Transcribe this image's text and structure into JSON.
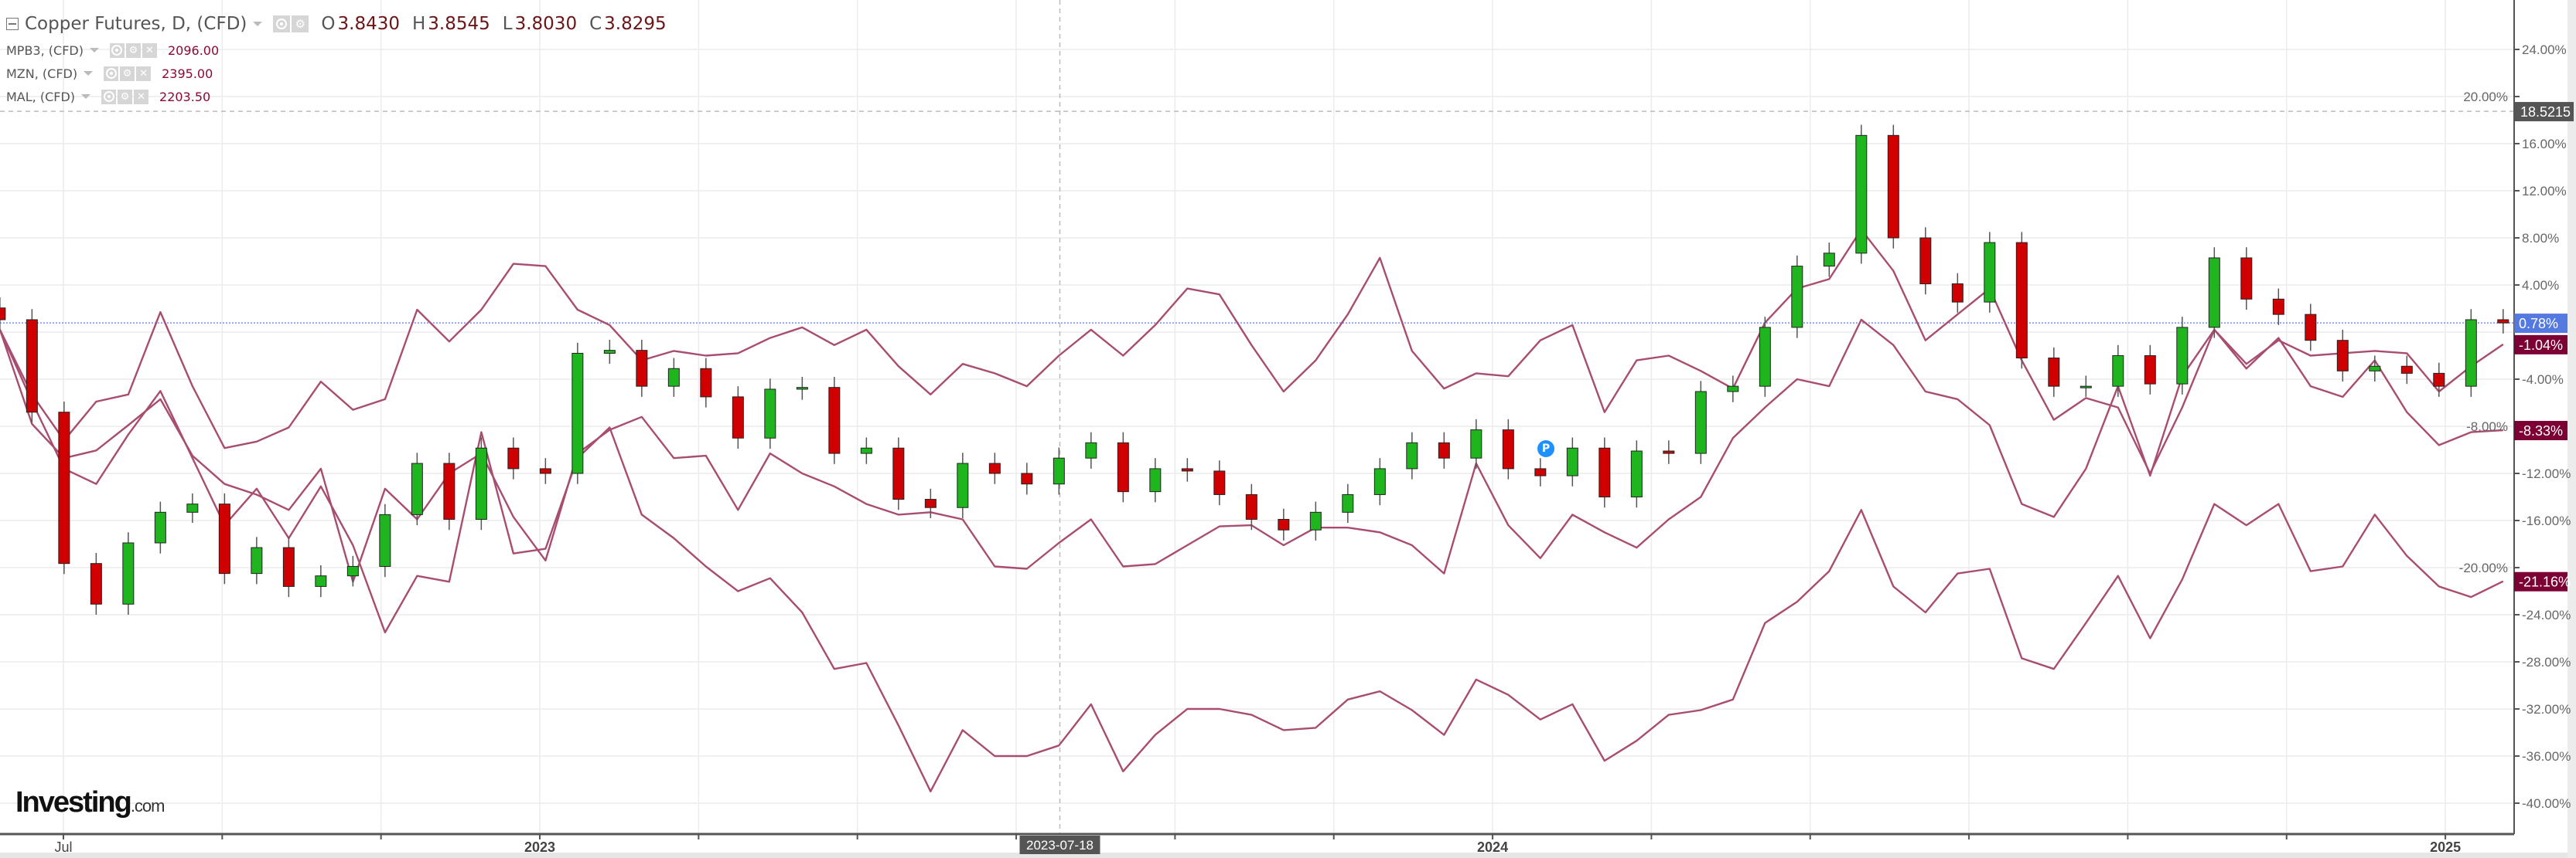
{
  "legend": {
    "main": {
      "title": "Copper Futures, D, (CFD)",
      "ohlc": [
        {
          "k": "O",
          "v": "3.8430"
        },
        {
          "k": "H",
          "v": "3.8545"
        },
        {
          "k": "L",
          "v": "3.8030"
        },
        {
          "k": "C",
          "v": "3.8295"
        }
      ]
    },
    "overlays": [
      {
        "name": "MPB3, (CFD)",
        "value": "2096.00"
      },
      {
        "name": "MZN, (CFD)",
        "value": "2395.00"
      },
      {
        "name": "MAL, (CFD)",
        "value": "2203.50"
      }
    ]
  },
  "logo": {
    "big": "Investing",
    "small": ".com"
  },
  "marker": {
    "label": "P"
  },
  "chart_data": {
    "type": "candlestick+line",
    "x_unit": "months since 2022-07-01",
    "x_start": -0.8,
    "x_step": 0.4042,
    "ylabel": "% change",
    "ylim": [
      -43,
      28
    ],
    "y_ticks": [
      24,
      20,
      16,
      12,
      8,
      4,
      -4,
      -8,
      -12,
      -16,
      -20,
      -24,
      -28,
      -32,
      -36,
      -40
    ],
    "y_tick_suffix": ".00%",
    "x_grid_months": [
      0,
      2,
      4,
      6,
      8,
      10,
      12,
      14,
      16,
      18,
      20,
      22,
      24,
      26,
      28,
      30
    ],
    "x_labels": [
      {
        "m": 0,
        "label": "Jul"
      },
      {
        "m": 6,
        "label": "2023"
      },
      {
        "m": 18,
        "label": "2024"
      },
      {
        "m": 30,
        "label": "2025"
      }
    ],
    "crosshair": {
      "m": 12.55,
      "date_label": "2023-07-18",
      "y": 18.75,
      "value_label": "18.5215"
    },
    "copper": {
      "name": "Copper Futures",
      "current": 0.78,
      "current_label": "0.78%",
      "closes": [
        1.05,
        -6.8,
        -19.65,
        -23.1,
        -17.9,
        -15.3,
        -14.6,
        -20.5,
        -18.3,
        -21.6,
        -20.7,
        -19.9,
        -15.5,
        -11.15,
        -15.9,
        -9.85,
        -11.6,
        -12.0,
        -1.8,
        -1.55,
        -4.6,
        -3.1,
        -5.5,
        -9.0,
        -4.85,
        -4.7,
        -10.3,
        -9.85,
        -14.2,
        -14.9,
        -11.15,
        -12.0,
        -12.9,
        -10.7,
        -9.4,
        -13.55,
        -11.6,
        -11.8,
        -13.8,
        -15.9,
        -16.8,
        -15.3,
        -13.8,
        -11.6,
        -9.4,
        -10.7,
        -8.3,
        -11.6,
        -12.2,
        -9.85,
        -14.0,
        -10.1,
        -10.3,
        -5.05,
        -4.6,
        0.4,
        5.6,
        6.7,
        16.7,
        8.0,
        4.1,
        2.55,
        7.6,
        -2.2,
        -4.6,
        -4.6,
        -2.0,
        -4.4,
        0.4,
        6.3,
        2.8,
        1.5,
        -0.7,
        -3.3,
        -2.9,
        -3.5,
        -4.6,
        1.05,
        0.78
      ]
    },
    "series": [
      {
        "name": "MPB3",
        "last": -1.04,
        "last_label": "-1.04%",
        "values": [
          0.2,
          -5.3,
          -9.2,
          -5.9,
          -5.3,
          1.7,
          -4.6,
          -9.85,
          -9.3,
          -8.1,
          -4.2,
          -6.6,
          -5.7,
          1.9,
          -0.8,
          1.9,
          5.8,
          5.6,
          1.9,
          0.6,
          -2.4,
          -1.6,
          -2.0,
          -1.8,
          -0.5,
          0.4,
          -1.1,
          0.2,
          -2.9,
          -5.3,
          -2.7,
          -3.5,
          -4.6,
          -2.0,
          0.2,
          -2.0,
          0.6,
          3.7,
          3.2,
          -1.1,
          -5.05,
          -2.4,
          1.5,
          6.3,
          -1.6,
          -4.8,
          -3.5,
          -3.75,
          -0.7,
          0.6,
          -6.8,
          -2.4,
          -2.0,
          -3.3,
          -4.8,
          0.8,
          3.7,
          4.5,
          8.7,
          5.2,
          -0.7,
          1.5,
          3.7,
          -2.4,
          -7.45,
          -5.6,
          -6.4,
          -12.0,
          -6.4,
          0.2,
          -2.7,
          -0.7,
          -2.0,
          -1.8,
          -1.6,
          -1.8,
          -5.05,
          -2.9,
          -1.04
        ]
      },
      {
        "name": "MAL",
        "last": -8.33,
        "last_label": "-8.33%",
        "values": [
          0.2,
          -7.8,
          -10.7,
          -10.05,
          -7.9,
          -5.7,
          -10.5,
          -12.9,
          -13.8,
          -15.1,
          -11.6,
          -21.2,
          -13.3,
          -15.9,
          -12.0,
          -10.3,
          -15.7,
          -19.4,
          -10.3,
          -8.3,
          -7.2,
          -10.7,
          -10.5,
          -15.1,
          -10.3,
          -12.0,
          -13.1,
          -14.6,
          -15.5,
          -15.3,
          -15.9,
          -19.9,
          -20.1,
          -17.9,
          -15.9,
          -19.9,
          -19.7,
          -18.1,
          -16.5,
          -16.4,
          -18.1,
          -16.6,
          -16.6,
          -17.0,
          -18.1,
          -20.5,
          -11.15,
          -16.4,
          -19.2,
          -15.5,
          -17.0,
          -18.3,
          -15.9,
          -14.0,
          -9.0,
          -6.4,
          -4.0,
          -4.6,
          1.05,
          -1.1,
          -5.05,
          -5.7,
          -7.9,
          -14.6,
          -15.7,
          -11.6,
          -4.6,
          -12.2,
          -3.75,
          0.2,
          -3.1,
          -0.5,
          -4.6,
          -5.5,
          -2.4,
          -6.8,
          -9.6,
          -8.5,
          -8.33
        ]
      },
      {
        "name": "MZN",
        "last": -21.16,
        "last_label": "-21.16%",
        "values": [
          0.2,
          -5.9,
          -11.6,
          -12.9,
          -8.7,
          -5.0,
          -10.7,
          -16.4,
          -13.3,
          -17.5,
          -13.1,
          -18.1,
          -25.5,
          -20.7,
          -21.2,
          -8.5,
          -18.8,
          -18.4,
          -10.7,
          -8.1,
          -15.5,
          -17.5,
          -19.9,
          -22.0,
          -20.9,
          -23.8,
          -28.6,
          -28.1,
          -33.4,
          -39.0,
          -33.8,
          -36.0,
          -36.0,
          -35.1,
          -31.6,
          -37.3,
          -34.2,
          -32.0,
          -32.0,
          -32.5,
          -33.8,
          -33.6,
          -31.2,
          -30.5,
          -32.1,
          -34.2,
          -29.5,
          -30.8,
          -32.9,
          -31.6,
          -36.4,
          -34.7,
          -32.5,
          -32.1,
          -31.2,
          -24.7,
          -22.9,
          -20.3,
          -15.1,
          -21.6,
          -23.8,
          -20.5,
          -20.1,
          -27.7,
          -28.6,
          -24.7,
          -20.7,
          -26.0,
          -21.0,
          -14.6,
          -16.4,
          -14.6,
          -20.3,
          -19.9,
          -15.5,
          -19.0,
          -21.6,
          -22.5,
          -21.16
        ]
      }
    ],
    "grid": true
  },
  "colors": {
    "up": "#1fb51f",
    "down": "#d10000",
    "line": "#a84d70",
    "label_dark": "#7c0033",
    "label_blue": "#5479e0",
    "axis": "#555555",
    "grid": "#ececec"
  }
}
